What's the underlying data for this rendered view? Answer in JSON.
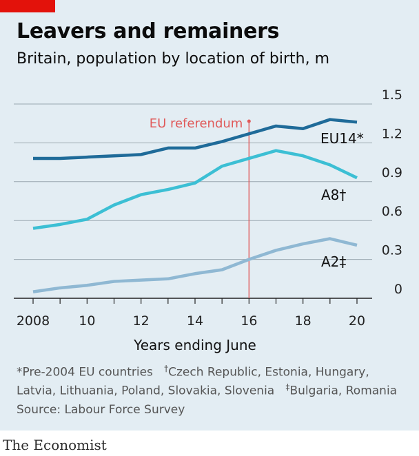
{
  "title": "Leavers and remainers",
  "subtitle": "Britain, population by location of birth, m",
  "footnotes": {
    "line1_a": "*Pre-2004 EU countries",
    "line1_dagger": "†",
    "line1_b": "Czech Republic, Estonia, Hungary,",
    "line2_a": "Latvia, Lithuania, Poland, Slovakia, Slovenia",
    "line2_ddagger": "‡",
    "line2_b": "Bulgaria, Romania",
    "source": "Source: Labour Force Survey"
  },
  "brand": "The Economist",
  "colors": {
    "accent_red": "#e3120b",
    "annotation_red": "#e05a5a",
    "eu14": "#1f6b99",
    "a8": "#3cbfd4",
    "a2": "#8fb8d3",
    "background": "#e3edf3",
    "grid": "#9aa7b0"
  },
  "chart_data": {
    "type": "line",
    "x": [
      2008,
      2009,
      2010,
      2011,
      2012,
      2013,
      2014,
      2015,
      2016,
      2017,
      2018,
      2019,
      2020
    ],
    "x_tick_values": [
      2008,
      2010,
      2012,
      2014,
      2016,
      2018,
      2020
    ],
    "x_tick_labels": [
      "2008",
      "10",
      "12",
      "14",
      "16",
      "18",
      "20"
    ],
    "xlabel": "Years ending June",
    "ylim": [
      0,
      1.5
    ],
    "y_ticks": [
      0,
      0.3,
      0.6,
      0.9,
      1.2,
      1.5
    ],
    "y_tick_labels": [
      "0",
      "0.3",
      "0.6",
      "0.9",
      "1.2",
      "1.5"
    ],
    "grid": true,
    "series": [
      {
        "name": "EU14*",
        "color": "#1f6b99",
        "values": [
          1.08,
          1.08,
          1.09,
          1.1,
          1.11,
          1.16,
          1.16,
          1.21,
          1.27,
          1.33,
          1.31,
          1.38,
          1.36
        ]
      },
      {
        "name": "A8†",
        "color": "#3cbfd4",
        "values": [
          0.54,
          0.57,
          0.61,
          0.72,
          0.8,
          0.84,
          0.89,
          1.02,
          1.08,
          1.14,
          1.1,
          1.03,
          0.93
        ]
      },
      {
        "name": "A2‡",
        "color": "#8fb8d3",
        "values": [
          0.05,
          0.08,
          0.1,
          0.13,
          0.14,
          0.15,
          0.19,
          0.22,
          0.3,
          0.37,
          0.42,
          0.46,
          0.41
        ]
      }
    ],
    "annotations": [
      {
        "x": 2016,
        "label": "EU referendum"
      }
    ]
  }
}
